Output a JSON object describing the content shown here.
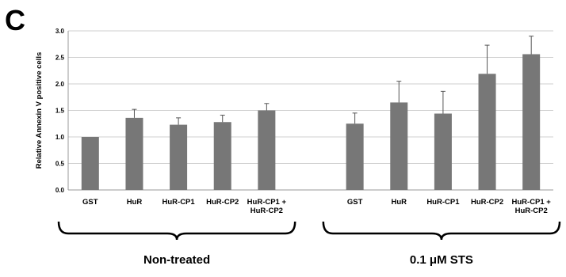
{
  "panel_label": "C",
  "chart_data": {
    "type": "bar",
    "title": "",
    "xlabel": "",
    "ylabel": "Relative Annexin V positive cells",
    "ylim": [
      0,
      3.0
    ],
    "yticks": [
      "0.0",
      "0.5",
      "1.0",
      "1.5",
      "2.0",
      "2.5",
      "3.0"
    ],
    "grid": true,
    "bar_color": "#777777",
    "groups": [
      {
        "label": "Non-treated",
        "categories": [
          "GST",
          "HuR",
          "HuR-CP1",
          "HuR-CP2",
          "HuR-CP1 +\nHuR-CP2"
        ],
        "values": [
          1.0,
          1.36,
          1.23,
          1.28,
          1.5
        ],
        "errors": [
          0.0,
          0.16,
          0.13,
          0.13,
          0.13
        ]
      },
      {
        "label": "0.1 μM STS",
        "categories": [
          "GST",
          "HuR",
          "HuR-CP1",
          "HuR-CP2",
          "HuR-CP1 +\nHuR-CP2"
        ],
        "values": [
          1.25,
          1.65,
          1.44,
          2.19,
          2.56
        ],
        "errors": [
          0.2,
          0.4,
          0.42,
          0.54,
          0.34
        ]
      }
    ]
  }
}
